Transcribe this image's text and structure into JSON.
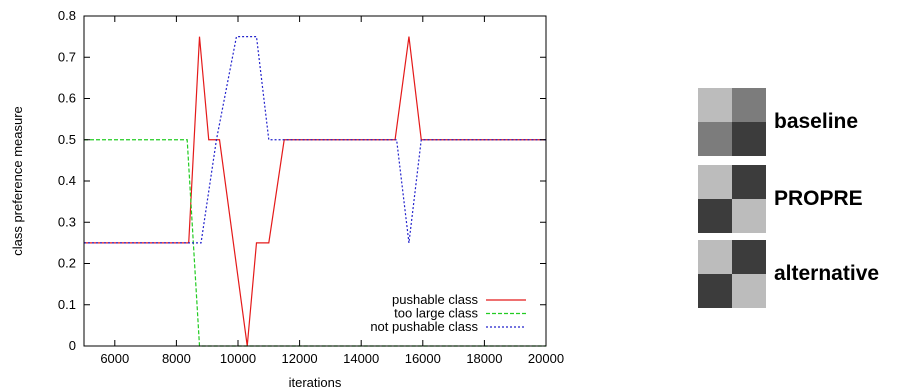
{
  "chart_data": {
    "type": "line",
    "title": "",
    "xlabel": "iterations",
    "ylabel": "class preference measure",
    "xlim": [
      5000,
      20000
    ],
    "ylim": [
      0,
      0.8
    ],
    "xticks": [
      6000,
      8000,
      10000,
      12000,
      14000,
      16000,
      18000,
      20000
    ],
    "yticks": [
      0,
      0.1,
      0.2,
      0.3,
      0.4,
      0.5,
      0.6,
      0.7,
      0.8
    ],
    "xtick_labels": [
      "6000",
      "8000",
      "10000",
      "12000",
      "14000",
      "16000",
      "18000",
      "20000"
    ],
    "ytick_labels": [
      "0",
      "0.1",
      "0.2",
      "0.3",
      "0.4",
      "0.5",
      "0.6",
      "0.7",
      "0.8"
    ],
    "grid": false,
    "legend": "bottom-right",
    "series": [
      {
        "name": "pushable class",
        "color": "#e41a1a",
        "dash": "solid",
        "x": [
          5000,
          8400,
          8750,
          9050,
          9400,
          10300,
          10600,
          11000,
          11500,
          15100,
          15550,
          15950,
          20000
        ],
        "y": [
          0.25,
          0.25,
          0.75,
          0.5,
          0.5,
          0.0,
          0.25,
          0.25,
          0.5,
          0.5,
          0.75,
          0.5,
          0.5
        ]
      },
      {
        "name": "too large class",
        "color": "#22cc22",
        "dash": "dashed",
        "x": [
          5000,
          8350,
          8750,
          20000
        ],
        "y": [
          0.5,
          0.5,
          0.0,
          0.0
        ]
      },
      {
        "name": "not pushable class",
        "color": "#2222cc",
        "dash": "dotted",
        "x": [
          5000,
          8600,
          8800,
          9300,
          9950,
          10600,
          11000,
          11200,
          15150,
          15550,
          15950,
          20000
        ],
        "y": [
          0.25,
          0.25,
          0.25,
          0.5,
          0.75,
          0.75,
          0.5,
          0.5,
          0.5,
          0.25,
          0.5,
          0.5
        ]
      }
    ]
  },
  "side_legend": [
    {
      "label": "baseline",
      "cells": [
        "#bcbcbc",
        "#7c7c7c",
        "#7c7c7c",
        "#3c3c3c"
      ]
    },
    {
      "label": "PROPRE",
      "cells": [
        "#bcbcbc",
        "#3c3c3c",
        "#3c3c3c",
        "#bcbcbc"
      ]
    },
    {
      "label": "alternative",
      "cells": [
        "#bcbcbc",
        "#3c3c3c",
        "#3c3c3c",
        "#bcbcbc"
      ]
    }
  ]
}
